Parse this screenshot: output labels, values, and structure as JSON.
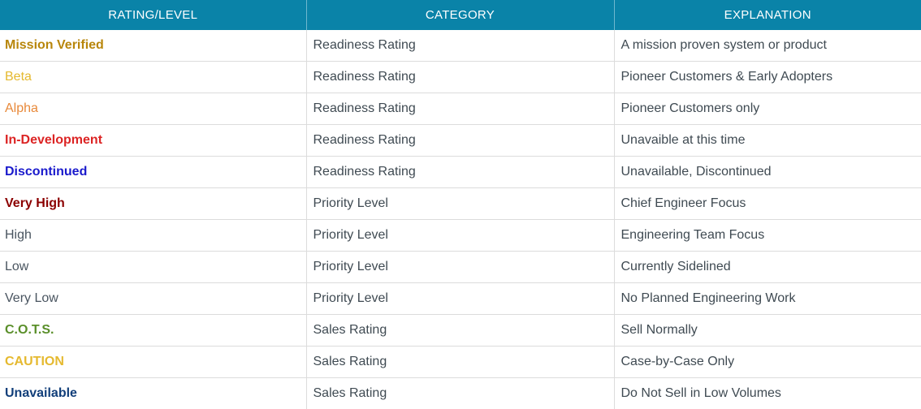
{
  "headers": {
    "rating": "RATING/LEVEL",
    "category": "CATEGORY",
    "explanation": "EXPLANATION"
  },
  "rows": [
    {
      "rating": "Mission Verified",
      "category": "Readiness Rating",
      "explanation": "A mission proven system or product",
      "color": "#b8860b"
    },
    {
      "rating": "Beta",
      "category": "Readiness Rating",
      "explanation": "Pioneer Customers & Early Adopters",
      "color": "#e5b92f"
    },
    {
      "rating": "Alpha",
      "category": "Readiness Rating",
      "explanation": "Pioneer Customers only",
      "color": "#e8893a"
    },
    {
      "rating": "In-Development",
      "category": "Readiness Rating",
      "explanation": "Unavaible at this time",
      "color": "#dc2424"
    },
    {
      "rating": "Discontinued",
      "category": "Readiness Rating",
      "explanation": "Unavailable, Discontinued",
      "color": "#1a1acc"
    },
    {
      "rating": "Very High",
      "category": "Priority Level",
      "explanation": "Chief Engineer Focus",
      "color": "#8b0000"
    },
    {
      "rating": "High",
      "category": "Priority Level",
      "explanation": "Engineering Team Focus",
      "color": "#4a5560"
    },
    {
      "rating": "Low",
      "category": "Priority Level",
      "explanation": "Currently Sidelined",
      "color": "#4a5560"
    },
    {
      "rating": "Very Low",
      "category": "Priority Level",
      "explanation": "No Planned Engineering Work",
      "color": "#4a5560"
    },
    {
      "rating": "C.O.T.S.",
      "category": "Sales Rating",
      "explanation": "Sell Normally",
      "color": "#5a8f2a"
    },
    {
      "rating": "CAUTION",
      "category": "Sales Rating",
      "explanation": "Case-by-Case Only",
      "color": "#e5b92f"
    },
    {
      "rating": "Unavailable",
      "category": "Sales Rating",
      "explanation": "Do Not Sell in Low Volumes",
      "color": "#123f7a"
    }
  ],
  "colors": {
    "header_bg": "#0a83a8",
    "header_text": "#ffffff",
    "body_text": "#3f4a52",
    "grid_line": "#dcdcdc"
  }
}
